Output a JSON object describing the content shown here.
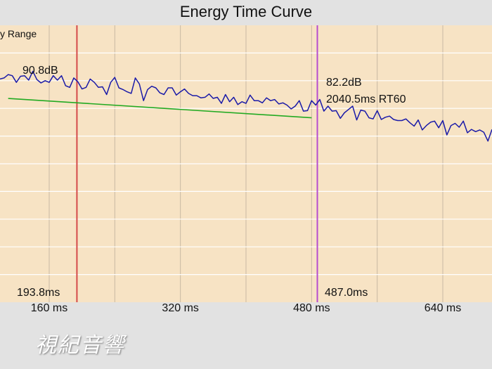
{
  "window": {
    "title": "Energy Time Curve"
  },
  "chart_data": {
    "type": "line",
    "title": "Energy Time Curve",
    "range_label": "y Range",
    "xlim": [
      100,
      700
    ],
    "x_tick_labels": [
      {
        "x": 160,
        "label": "160 ms"
      },
      {
        "x": 320,
        "label": "320 ms"
      },
      {
        "x": 480,
        "label": "480 ms"
      },
      {
        "x": 640,
        "label": "640 ms"
      }
    ],
    "ylim": [
      55,
      105
    ],
    "grid": true,
    "series": [
      {
        "color": "#1a1aa8",
        "start_ms": 100,
        "step_ms": 5,
        "values": [
          95.3,
          95.5,
          96.1,
          95.9,
          94.7,
          95.8,
          95.9,
          95.1,
          96.7,
          95.2,
          94.6,
          95.0,
          94.7,
          95.9,
          95.1,
          95.9,
          94.1,
          93.8,
          95.5,
          94.8,
          93.5,
          93.8,
          95.3,
          94.7,
          93.8,
          93.9,
          92.5,
          94.7,
          95.6,
          93.7,
          93.4,
          93.0,
          92.7,
          95.5,
          94.4,
          91.4,
          93.4,
          94.0,
          93.7,
          92.8,
          92.5,
          93.7,
          93.7,
          92.4,
          93.0,
          93.5,
          92.7,
          92.3,
          92.3,
          91.9,
          92.0,
          92.6,
          91.8,
          92.0,
          90.9,
          92.5,
          91.2,
          92.0,
          90.7,
          91.2,
          90.9,
          92.4,
          91.4,
          91.4,
          91.0,
          91.9,
          91.4,
          91.6,
          90.8,
          91.0,
          90.6,
          89.9,
          90.4,
          91.4,
          89.5,
          89.6,
          91.4,
          90.6,
          91.6,
          89.5,
          90.4,
          89.5,
          89.6,
          88.2,
          89.2,
          89.8,
          90.4,
          87.9,
          89.7,
          89.5,
          88.3,
          88.1,
          89.6,
          88.0,
          88.4,
          88.6,
          88.0,
          87.8,
          87.8,
          88.1,
          87.4,
          86.8,
          87.9,
          86.1,
          86.9,
          87.5,
          87.7,
          86.5,
          87.8,
          85.2,
          86.9,
          87.3,
          86.6,
          87.7,
          85.6,
          86.2,
          85.8,
          86.1,
          85.7,
          84.1,
          86.2
        ]
      },
      {
        "color": "#22aa22",
        "x": [
          110,
          480
        ],
        "values": [
          91.8,
          88.3
        ]
      }
    ],
    "markers": [
      {
        "x": 193.8,
        "color": "#d44a4a",
        "level_label": "90.8dB",
        "time_label": "193.8ms"
      },
      {
        "x": 487.0,
        "color": "#b64ccf",
        "level_label": "82.2dB",
        "rt_label": "2040.5ms RT60",
        "time_label": "487.0ms"
      }
    ]
  },
  "watermark": "視紀音響"
}
